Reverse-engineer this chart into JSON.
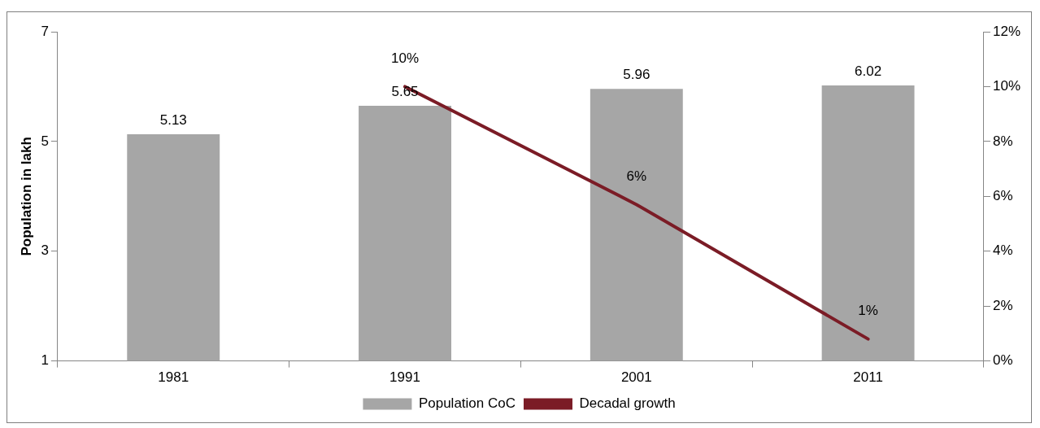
{
  "chart_data": {
    "type": "bar",
    "ylabel": "Population in lakh",
    "categories": [
      "1981",
      "1991",
      "2001",
      "2011"
    ],
    "series": [
      {
        "name": "Population CoC",
        "color": "#a6a6a6",
        "values": [
          5.13,
          5.65,
          5.96,
          6.02
        ],
        "value_labels": [
          "5.13",
          "5.65",
          "5.96",
          "6.02"
        ]
      },
      {
        "name": "Decadal growth",
        "type": "line",
        "axis": "y2",
        "color": "#7b1c26",
        "values": [
          null,
          10,
          5.7,
          0.8
        ],
        "value_labels": [
          null,
          "10%",
          "6%",
          "1%"
        ]
      }
    ],
    "ylim": [
      1,
      7
    ],
    "yticks": [
      1,
      3,
      5,
      7
    ],
    "y2lim": [
      0,
      12
    ],
    "y2ticks": [
      {
        "value": 0,
        "label": "0%"
      },
      {
        "value": 2,
        "label": "2%"
      },
      {
        "value": 4,
        "label": "4%"
      },
      {
        "value": 6,
        "label": "6%"
      },
      {
        "value": 8,
        "label": "8%"
      },
      {
        "value": 10,
        "label": "10%"
      },
      {
        "value": 12,
        "label": "12%"
      }
    ],
    "grid": false,
    "legend": "bottom",
    "marker": "none",
    "line_style": "solid"
  }
}
